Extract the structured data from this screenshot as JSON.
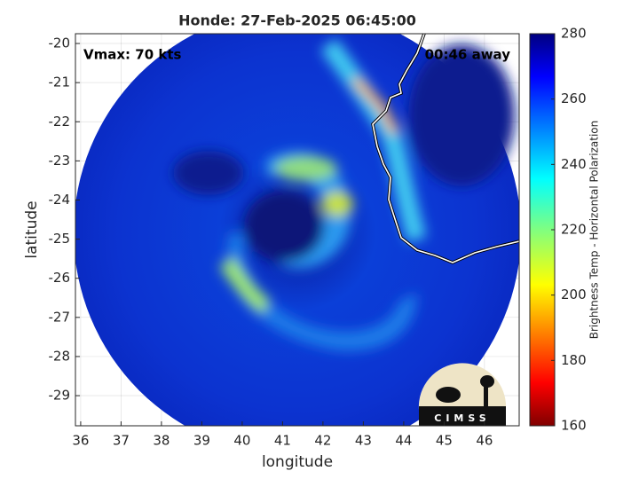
{
  "title": "Honde: 27-Feb-2025 06:45:00",
  "annotations": {
    "intensity": "Vmax: 70 kts",
    "time_offset": "00:46 away"
  },
  "x_axis": {
    "label": "longitude",
    "lim": [
      35.87,
      46.86
    ],
    "ticks": [
      36,
      37,
      38,
      39,
      40,
      41,
      42,
      43,
      44,
      45,
      46
    ]
  },
  "y_axis": {
    "label": "latitude",
    "lim": [
      -29.77,
      -19.75
    ],
    "ticks": [
      -20,
      -21,
      -22,
      -23,
      -24,
      -25,
      -26,
      -27,
      -28,
      -29
    ]
  },
  "grid": true,
  "colorbar": {
    "label": "Brightness Temp - Horizontal Polarization",
    "lim": [
      160,
      280
    ],
    "ticks": [
      160,
      180,
      200,
      220,
      240,
      260,
      280
    ],
    "colormap": "jet"
  },
  "logo": "CIMSS"
}
